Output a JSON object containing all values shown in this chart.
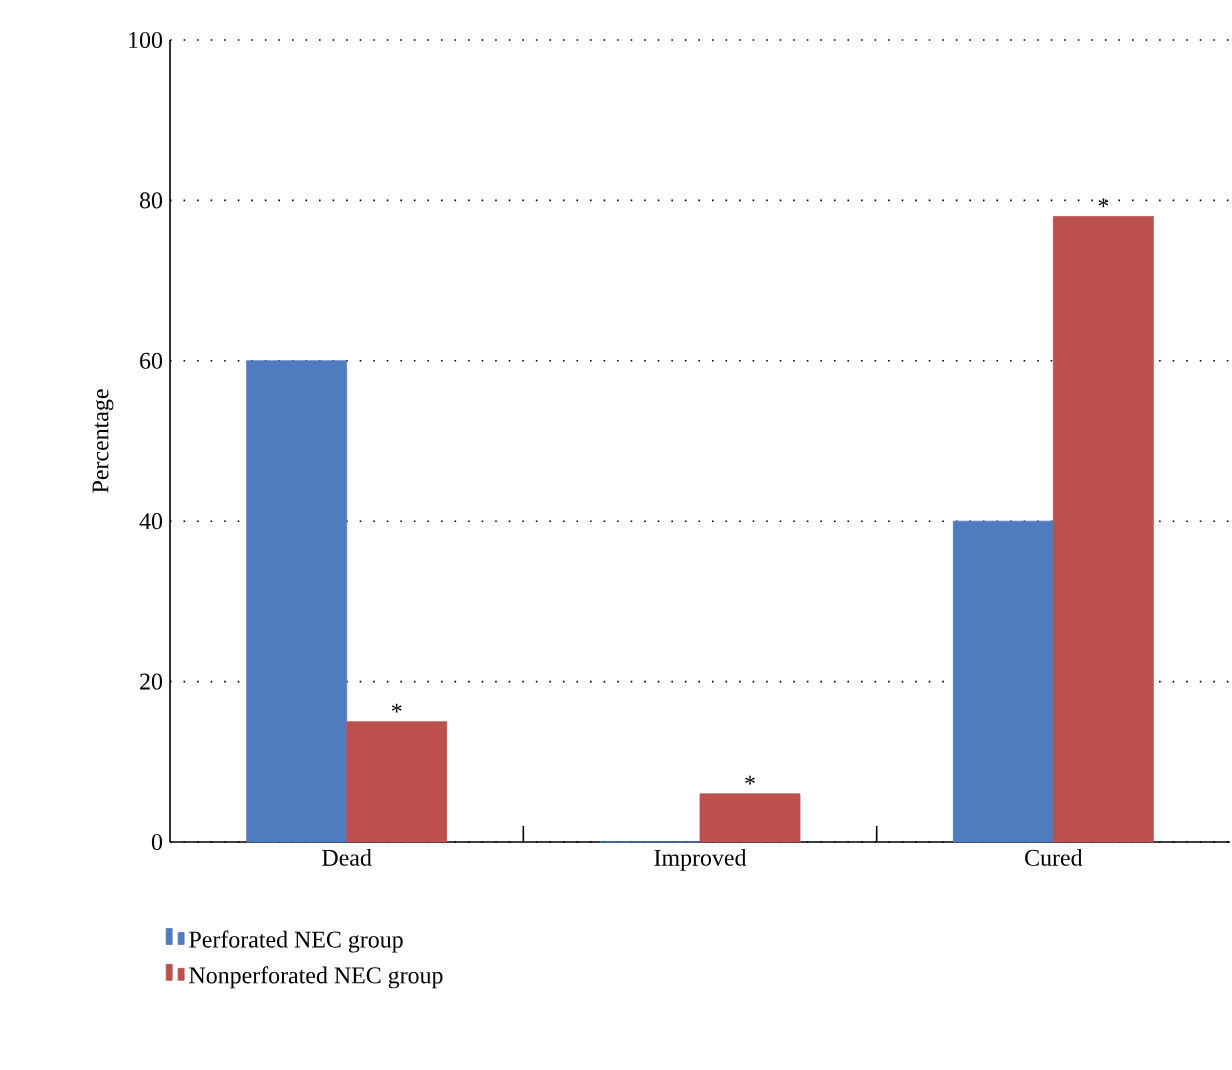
{
  "chart_data": {
    "type": "bar",
    "ylabel": "Percentage",
    "categories": [
      "Dead",
      "Improved",
      "Cured"
    ],
    "series": [
      {
        "name": "Perforated NEC group",
        "color": "#4f7bbf",
        "values": [
          60,
          0,
          40
        ]
      },
      {
        "name": "Nonperforated NEC group",
        "color": "#bb504f",
        "values": [
          15,
          6,
          78
        ]
      }
    ],
    "ylim": [
      0,
      100
    ],
    "yticks": [
      0,
      20,
      40,
      60,
      80,
      100
    ],
    "grid": "y",
    "legend": "bottom",
    "annotations": [
      {
        "text": "*",
        "x": "Dead",
        "y": 15
      },
      {
        "text": "*",
        "x": "Improved",
        "y": 6
      },
      {
        "text": "*",
        "x": "Cured",
        "y": 78
      }
    ]
  }
}
